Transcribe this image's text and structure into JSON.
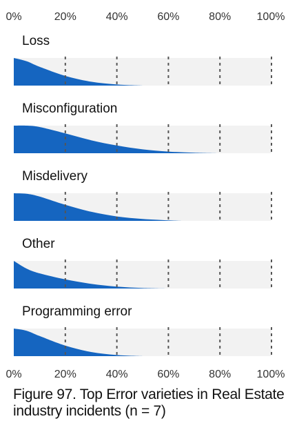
{
  "chart_data": {
    "type": "area",
    "title": "Figure 97. Top Error varieties in Real Estate industry incidents (n = 7)",
    "x_ticks": [
      "0%",
      "20%",
      "40%",
      "60%",
      "80%",
      "100%"
    ],
    "xlim": [
      0,
      100
    ],
    "grid": true,
    "series_color": "#1565c0",
    "track_color": "#f2f2f2",
    "categories": [
      "Loss",
      "Misconfiguration",
      "Misdelivery",
      "Other",
      "Programming error"
    ],
    "series": [
      {
        "name": "Loss",
        "x": [
          0,
          5,
          10,
          20,
          30,
          40,
          50
        ],
        "values": [
          1.0,
          0.88,
          0.68,
          0.35,
          0.14,
          0.04,
          0.0
        ]
      },
      {
        "name": "Misconfiguration",
        "x": [
          0,
          5,
          10,
          20,
          30,
          40,
          50,
          60,
          70,
          80
        ],
        "values": [
          1.0,
          1.0,
          0.95,
          0.72,
          0.47,
          0.28,
          0.14,
          0.06,
          0.02,
          0.0
        ]
      },
      {
        "name": "Misdelivery",
        "x": [
          0,
          5,
          10,
          20,
          30,
          40,
          50,
          60,
          65
        ],
        "values": [
          1.0,
          0.98,
          0.88,
          0.58,
          0.33,
          0.16,
          0.07,
          0.02,
          0.0
        ]
      },
      {
        "name": "Other",
        "x": [
          0,
          5,
          10,
          20,
          30,
          40,
          50,
          60
        ],
        "values": [
          1.0,
          0.72,
          0.55,
          0.33,
          0.17,
          0.07,
          0.02,
          0.0
        ]
      },
      {
        "name": "Programming error",
        "x": [
          0,
          5,
          10,
          20,
          30,
          40,
          50
        ],
        "values": [
          1.0,
          0.92,
          0.73,
          0.38,
          0.15,
          0.04,
          0.0
        ]
      }
    ]
  }
}
